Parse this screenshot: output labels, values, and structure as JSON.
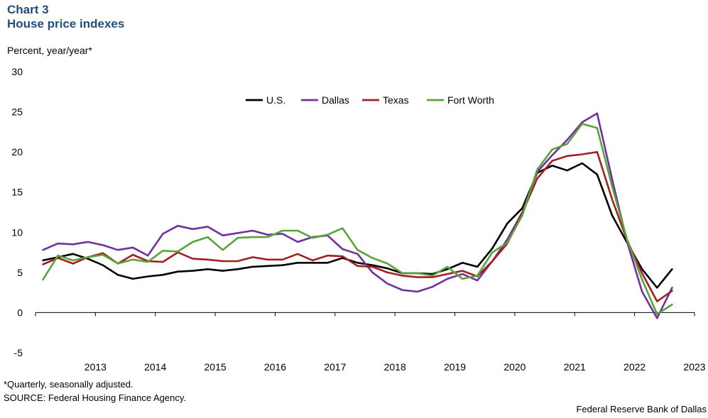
{
  "header": {
    "chart_number": "Chart 3",
    "title": "House price indexes"
  },
  "footer": {
    "footnote": "*Quarterly, seasonally adjusted.",
    "source": "SOURCE: Federal Housing Finance Agency.",
    "credit": "Federal Reserve Bank of Dallas"
  },
  "chart_data": {
    "type": "line",
    "ylabel": "Percent, year/year*",
    "ylim": [
      -5,
      30
    ],
    "yticks": [
      -5,
      0,
      5,
      10,
      15,
      20,
      25,
      30
    ],
    "year_labels": [
      "2013",
      "2014",
      "2015",
      "2016",
      "2017",
      "2018",
      "2019",
      "2020",
      "2021",
      "2022",
      "2023"
    ],
    "x_start": "2012 Q3",
    "x_end": "2023 Q1",
    "frequency": "quarterly",
    "legend_position": "top-center",
    "grid": false,
    "series": [
      {
        "name": "U.S.",
        "color": "#000000",
        "values": [
          6.5,
          6.9,
          7.3,
          6.7,
          5.9,
          4.7,
          4.2,
          4.5,
          4.7,
          5.1,
          5.2,
          5.4,
          5.2,
          5.4,
          5.7,
          5.8,
          5.9,
          6.2,
          6.2,
          6.2,
          6.8,
          6.2,
          5.9,
          5.5,
          4.9,
          4.9,
          4.8,
          5.4,
          6.2,
          5.7,
          8.0,
          11.1,
          13.0,
          17.4,
          18.3,
          17.7,
          18.6,
          17.2,
          12.1,
          8.7,
          5.4,
          3.1,
          5.4
        ]
      },
      {
        "name": "Dallas",
        "color": "#7030a0",
        "values": [
          7.8,
          8.6,
          8.5,
          8.8,
          8.4,
          7.8,
          8.1,
          7.1,
          9.8,
          10.8,
          10.4,
          10.7,
          9.6,
          9.9,
          10.2,
          9.7,
          9.8,
          8.8,
          9.4,
          9.6,
          7.9,
          7.3,
          5.0,
          3.6,
          2.8,
          2.6,
          3.2,
          4.2,
          4.8,
          4.0,
          6.4,
          9.1,
          12.5,
          17.5,
          19.6,
          21.5,
          23.7,
          24.8,
          16.6,
          8.8,
          2.6,
          -0.7,
          3.1
        ]
      },
      {
        "name": "Texas",
        "color": "#a31f24",
        "values": [
          6.0,
          6.8,
          6.1,
          6.9,
          7.4,
          6.1,
          7.2,
          6.4,
          6.3,
          7.5,
          6.7,
          6.6,
          6.4,
          6.4,
          6.9,
          6.6,
          6.6,
          7.3,
          6.5,
          7.1,
          7.0,
          5.8,
          5.7,
          5.0,
          4.6,
          4.4,
          4.4,
          4.8,
          5.2,
          4.5,
          6.4,
          8.6,
          12.4,
          16.7,
          18.9,
          19.5,
          19.7,
          20.0,
          14.1,
          9.0,
          4.9,
          1.4,
          2.7
        ]
      },
      {
        "name": "Fort Worth",
        "color": "#5aa33b",
        "values": [
          4.1,
          7.1,
          6.5,
          6.9,
          7.2,
          6.1,
          6.6,
          6.3,
          7.7,
          7.6,
          8.8,
          9.4,
          7.8,
          9.3,
          9.4,
          9.4,
          10.2,
          10.2,
          9.3,
          9.7,
          10.5,
          7.8,
          6.8,
          6.1,
          4.9,
          4.9,
          4.6,
          5.7,
          4.2,
          4.6,
          7.5,
          8.7,
          12.1,
          17.8,
          20.3,
          21.0,
          23.5,
          23.0,
          15.7,
          9.1,
          4.1,
          -0.2,
          1.0
        ]
      }
    ]
  }
}
